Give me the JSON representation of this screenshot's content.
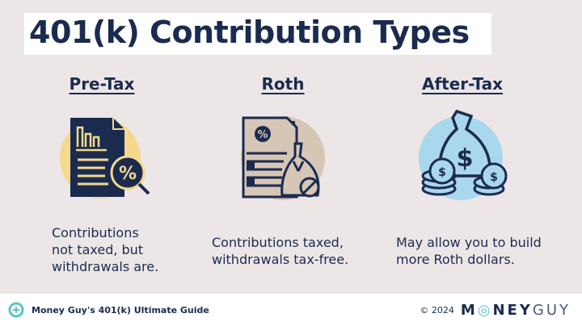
{
  "title": "401(k) Contribution Types",
  "columns": [
    {
      "heading": "Pre-Tax",
      "icon": "document-percent-magnifier-icon",
      "circle_color": "#f4d98c",
      "description_lines": [
        "Contributions",
        "not taxed, but",
        "withdrawals are."
      ]
    },
    {
      "heading": "Roth",
      "icon": "document-moneybag-no-tax-icon",
      "circle_color": "#d5c6b6",
      "description_lines": [
        "Contributions taxed,",
        "withdrawals tax-free."
      ]
    },
    {
      "heading": "After-Tax",
      "icon": "money-bag-coins-icon",
      "circle_color": "#a9d7ee",
      "description_lines": [
        "May allow you to build",
        "more Roth dollars."
      ]
    }
  ],
  "footer": {
    "guide_label": "Money Guy's 401(k) Ultimate Guide",
    "copyright": "© 2024",
    "brand_logo": "MONEYGUY"
  },
  "colors": {
    "navy": "#1b2b4f",
    "background": "#ece6e7",
    "accent_teal": "#5fc3c8"
  }
}
